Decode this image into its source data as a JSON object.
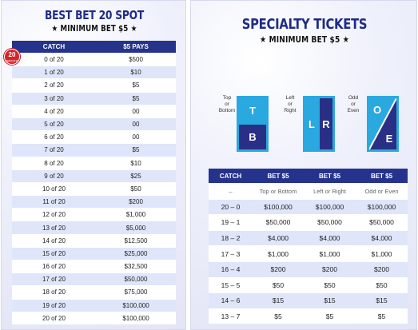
{
  "left": {
    "title": "BEST BET 20 SPOT",
    "subtitle": "★ MINIMUM BET $5 ★",
    "badge": {
      "number": "20",
      "label": "SPOTS",
      "color": "#d8232a"
    },
    "headers": [
      "CATCH",
      "$5 PAYS"
    ],
    "rows": [
      [
        "0 of 20",
        "$500"
      ],
      [
        "1 of 20",
        "$10"
      ],
      [
        "2 of 20",
        "$5"
      ],
      [
        "3 of 20",
        "$5"
      ],
      [
        "4 of 20",
        "00"
      ],
      [
        "5 of 20",
        "00"
      ],
      [
        "6 of 20",
        "00"
      ],
      [
        "7 of 20",
        "$5"
      ],
      [
        "8 of 20",
        "$10"
      ],
      [
        "9 of 20",
        "$25"
      ],
      [
        "10 of 20",
        "$50"
      ],
      [
        "11 of 20",
        "$200"
      ],
      [
        "12 of 20",
        "$1,000"
      ],
      [
        "13 of 20",
        "$5,000"
      ],
      [
        "14 of 20",
        "$12,500"
      ],
      [
        "15 of 20",
        "$25,000"
      ],
      [
        "16 of 20",
        "$32,500"
      ],
      [
        "17 of 20",
        "$50,000"
      ],
      [
        "18 of 20",
        "$75,000"
      ],
      [
        "19 of 20",
        "$100,000"
      ],
      [
        "20 of 20",
        "$100,000"
      ]
    ]
  },
  "right": {
    "title": "SPECIALTY TICKETS",
    "subtitle": "★ MINIMUM BET $5 ★",
    "tickets": {
      "tb": {
        "label_lines": [
          "Top",
          "or",
          "Bottom"
        ],
        "letters": [
          "T",
          "B"
        ]
      },
      "lr": {
        "label_lines": [
          "Left",
          "or",
          "Right"
        ],
        "letters": [
          "L",
          "R"
        ]
      },
      "oe": {
        "label_lines": [
          "Odd",
          "or",
          "Even"
        ],
        "letters": [
          "O",
          "E"
        ]
      }
    },
    "headers": [
      "CATCH",
      "BET $5",
      "BET $5",
      "BET $5"
    ],
    "subheader": [
      "–",
      "Top or Bottom",
      "Left or Right",
      "Odd or Even"
    ],
    "rows": [
      [
        "20 – 0",
        "$100,000",
        "$100,000",
        "$100,000"
      ],
      [
        "19 – 1",
        "$50,000",
        "$50,000",
        "$50,000"
      ],
      [
        "18 – 2",
        "$4,000",
        "$4,000",
        "$4,000"
      ],
      [
        "17 – 3",
        "$1,000",
        "$1,000",
        "$1,000"
      ],
      [
        "16 – 4",
        "$200",
        "$200",
        "$200"
      ],
      [
        "15 – 5",
        "$50",
        "$50",
        "$50"
      ],
      [
        "14 – 6",
        "$15",
        "$15",
        "$15"
      ],
      [
        "13 – 7",
        "$5",
        "$5",
        "$5"
      ]
    ]
  },
  "colors": {
    "navy": "#26338c",
    "title_blue": "#1f2b86",
    "ticket_blue": "#2aa8e0",
    "row_alt": "#dfe6fa"
  }
}
